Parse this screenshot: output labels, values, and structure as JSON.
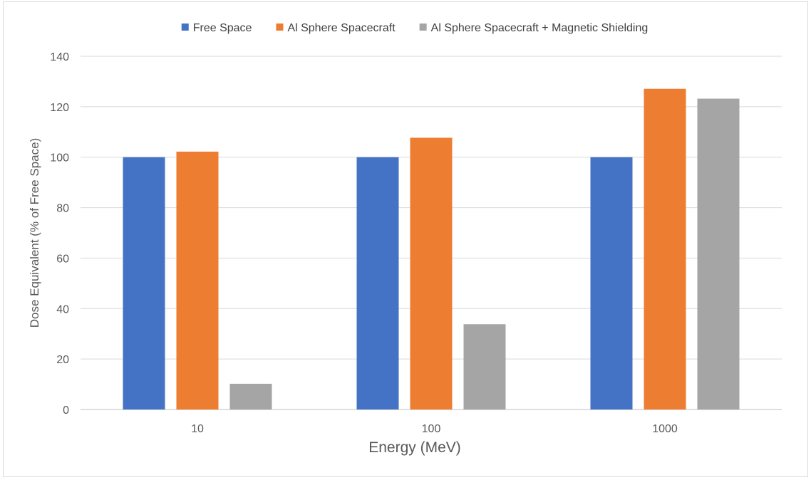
{
  "chart_data": {
    "type": "bar",
    "title": "",
    "xlabel": "Energy (MeV)",
    "ylabel": "Dose Equivalent (% of Free Space)",
    "categories": [
      "10",
      "100",
      "1000"
    ],
    "series": [
      {
        "name": "Free Space",
        "values": [
          100,
          100,
          100
        ],
        "color": "#4472C4"
      },
      {
        "name": "Al Sphere Spacecraft",
        "values": [
          102.2,
          107.7,
          127.1
        ],
        "color": "#ED7D31"
      },
      {
        "name": "Al Sphere Spacecraft + Magnetic Shielding",
        "values": [
          10.2,
          33.8,
          123.2
        ],
        "color": "#A5A5A5"
      }
    ],
    "ylim": [
      0,
      140
    ],
    "yticks": [
      0,
      20,
      40,
      60,
      80,
      100,
      120,
      140
    ],
    "grid": true,
    "legend_position": "top"
  }
}
